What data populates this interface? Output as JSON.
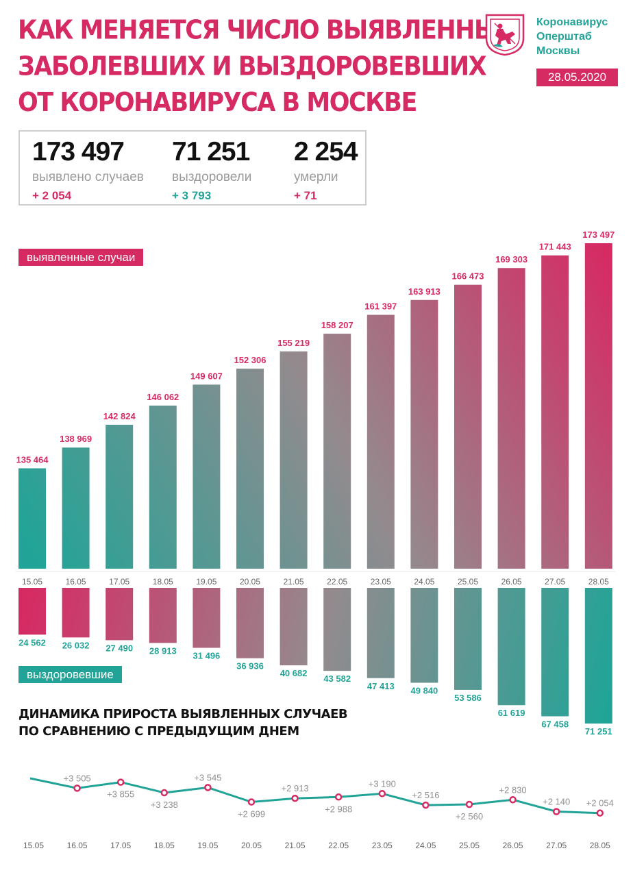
{
  "header": {
    "title_lines": [
      "КАК МЕНЯЕТСЯ ЧИСЛО ВЫЯВЛЕННЫХ",
      "ЗАБОЛЕВШИХ И ВЫЗДОРОВЕВШИХ",
      "ОТ КОРОНАВИРУСА В МОСКВЕ"
    ],
    "org_lines": [
      "Коронавирус",
      "Оперштаб",
      "Москвы"
    ],
    "date": "28.05.2020",
    "logo_icon": "moscow-coat-of-arms-icon"
  },
  "summary": [
    {
      "value": "173 497",
      "label": "выявлено случаев",
      "increment": "+ 2 054",
      "color": "#d62a63"
    },
    {
      "value": "71 251",
      "label": "выздоровели",
      "increment": "+ 3 793",
      "color": "#21a497"
    },
    {
      "value": "2 254",
      "label": "умерли",
      "increment": "+ 71",
      "color": "#d62a63"
    }
  ],
  "legend": {
    "cases": "выявленные случаи",
    "recovered": "выздоровевшие"
  },
  "subtitle_lines": [
    "ДИНАМИКА ПРИРОСТА ВЫЯВЛЕННЫХ СЛУЧАЕВ",
    "ПО СРАВНЕНИЮ С ПРЕДЫДУЩИМ ДНЕМ"
  ],
  "colors": {
    "accent": "#d62a63",
    "teal": "#21a497",
    "gray": "#8f8f8f"
  },
  "chart_data": [
    {
      "type": "bar",
      "categories": [
        "15.05",
        "16.05",
        "17.05",
        "18.05",
        "19.05",
        "20.05",
        "21.05",
        "22.05",
        "23.05",
        "24.05",
        "25.05",
        "26.05",
        "27.05",
        "28.05"
      ],
      "series": [
        {
          "name": "выявленные случаи",
          "values": [
            135464,
            138969,
            142824,
            146062,
            149607,
            152306,
            155219,
            158207,
            161397,
            163913,
            166473,
            169303,
            171443,
            173497
          ],
          "labels": [
            "135 464",
            "138 969",
            "142 824",
            "146 062",
            "149 607",
            "152 306",
            "155 219",
            "158 207",
            "161 397",
            "163 913",
            "166 473",
            "169 303",
            "171 443",
            "173 497"
          ]
        },
        {
          "name": "выздоровевшие",
          "values": [
            24562,
            26032,
            27490,
            28913,
            31496,
            36936,
            40682,
            43582,
            47413,
            49840,
            53586,
            61619,
            67458,
            71251
          ],
          "labels": [
            "24 562",
            "26 032",
            "27 490",
            "28 913",
            "31 496",
            "36 936",
            "40 682",
            "43 582",
            "47 413",
            "49 840",
            "53 586",
            "61 619",
            "67 458",
            "71 251"
          ]
        }
      ]
    },
    {
      "type": "line",
      "categories": [
        "15.05",
        "16.05",
        "17.05",
        "18.05",
        "19.05",
        "20.05",
        "21.05",
        "22.05",
        "23.05",
        "24.05",
        "25.05",
        "26.05",
        "27.05",
        "28.05"
      ],
      "values": [
        null,
        3505,
        3855,
        3238,
        3545,
        2699,
        2913,
        2988,
        3190,
        2516,
        2560,
        2830,
        2140,
        2054
      ],
      "labels": [
        "",
        "+3 505",
        "+3 855",
        "+3 238",
        "+3 545",
        "+2 699",
        "+2 913",
        "+2 988",
        "+3 190",
        "+2 516",
        "+2 560",
        "+2 830",
        "+2 140",
        "+2 054"
      ]
    }
  ]
}
